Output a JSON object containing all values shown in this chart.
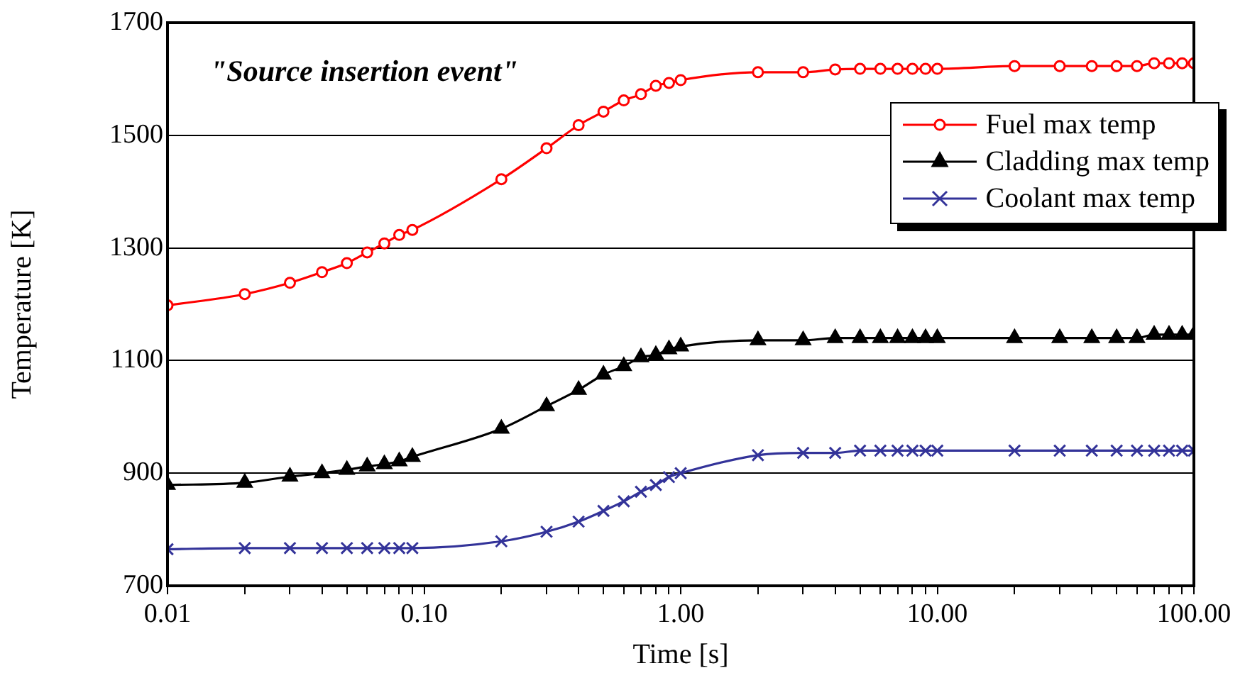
{
  "chart_data": {
    "type": "line",
    "xlabel": "Time [s]",
    "ylabel": "Temperature [K]",
    "annotations": [
      "\"Source insertion event\""
    ],
    "log": "x",
    "grid": "y",
    "legend": "top right",
    "line_style": "solid",
    "xlim": [
      0.01,
      100
    ],
    "ylim": [
      700,
      1700
    ],
    "xticks": [
      {
        "value": 0.01,
        "label": "0.01"
      },
      {
        "value": 0.02,
        "label": null
      },
      {
        "value": 0.03,
        "label": null
      },
      {
        "value": 0.04,
        "label": null
      },
      {
        "value": 0.05,
        "label": null
      },
      {
        "value": 0.06,
        "label": null
      },
      {
        "value": 0.07,
        "label": null
      },
      {
        "value": 0.08,
        "label": null
      },
      {
        "value": 0.09,
        "label": null
      },
      {
        "value": 0.1,
        "label": "0.10"
      },
      {
        "value": 0.2,
        "label": null
      },
      {
        "value": 0.3,
        "label": null
      },
      {
        "value": 0.4,
        "label": null
      },
      {
        "value": 0.5,
        "label": null
      },
      {
        "value": 0.6,
        "label": null
      },
      {
        "value": 0.7,
        "label": null
      },
      {
        "value": 0.8,
        "label": null
      },
      {
        "value": 0.9,
        "label": null
      },
      {
        "value": 1,
        "label": "1.00"
      },
      {
        "value": 2,
        "label": null
      },
      {
        "value": 3,
        "label": null
      },
      {
        "value": 4,
        "label": null
      },
      {
        "value": 5,
        "label": null
      },
      {
        "value": 6,
        "label": null
      },
      {
        "value": 7,
        "label": null
      },
      {
        "value": 8,
        "label": null
      },
      {
        "value": 9,
        "label": null
      },
      {
        "value": 10,
        "label": "10.00"
      },
      {
        "value": 20,
        "label": null
      },
      {
        "value": 30,
        "label": null
      },
      {
        "value": 40,
        "label": null
      },
      {
        "value": 50,
        "label": null
      },
      {
        "value": 60,
        "label": null
      },
      {
        "value": 70,
        "label": null
      },
      {
        "value": 80,
        "label": null
      },
      {
        "value": 90,
        "label": null
      },
      {
        "value": 100,
        "label": "100.00"
      }
    ],
    "yticks": [
      700,
      900,
      1100,
      1300,
      1500,
      1700
    ],
    "x": [
      0.01,
      0.02,
      0.03,
      0.04,
      0.05,
      0.06,
      0.07,
      0.08,
      0.09,
      0.2,
      0.3,
      0.4,
      0.5,
      0.6,
      0.7,
      0.8,
      0.9,
      1,
      2,
      3,
      4,
      5,
      6,
      7,
      8,
      9,
      10,
      20,
      30,
      40,
      50,
      60,
      70,
      80,
      90,
      100
    ],
    "series": [
      {
        "name": "Fuel max temp",
        "color": "#ff0000",
        "marker": "circle",
        "values": [
          1198,
          1218,
          1238,
          1257,
          1273,
          1292,
          1308,
          1323,
          1332,
          1422,
          1477,
          1518,
          1542,
          1562,
          1573,
          1588,
          1593,
          1598,
          1612,
          1612,
          1617,
          1618,
          1618,
          1618,
          1618,
          1618,
          1618,
          1623,
          1623,
          1623,
          1623,
          1623,
          1628,
          1628,
          1628,
          1628
        ]
      },
      {
        "name": "Cladding max temp",
        "color": "#000000",
        "marker": "triangle",
        "values": [
          879,
          883,
          894,
          900,
          906,
          912,
          916,
          921,
          929,
          979,
          1019,
          1048,
          1075,
          1090,
          1106,
          1110,
          1120,
          1125,
          1136,
          1136,
          1140,
          1140,
          1140,
          1140,
          1140,
          1140,
          1140,
          1140,
          1140,
          1140,
          1140,
          1140,
          1146,
          1146,
          1146,
          1146
        ]
      },
      {
        "name": "Coolant max temp",
        "color": "#333399",
        "marker": "cross",
        "values": [
          765,
          767,
          767,
          767,
          767,
          767,
          767,
          767,
          767,
          779,
          796,
          814,
          833,
          850,
          867,
          879,
          893,
          900,
          932,
          936,
          936,
          940,
          940,
          940,
          940,
          940,
          940,
          940,
          940,
          940,
          940,
          940,
          940,
          940,
          940,
          940
        ]
      }
    ]
  }
}
